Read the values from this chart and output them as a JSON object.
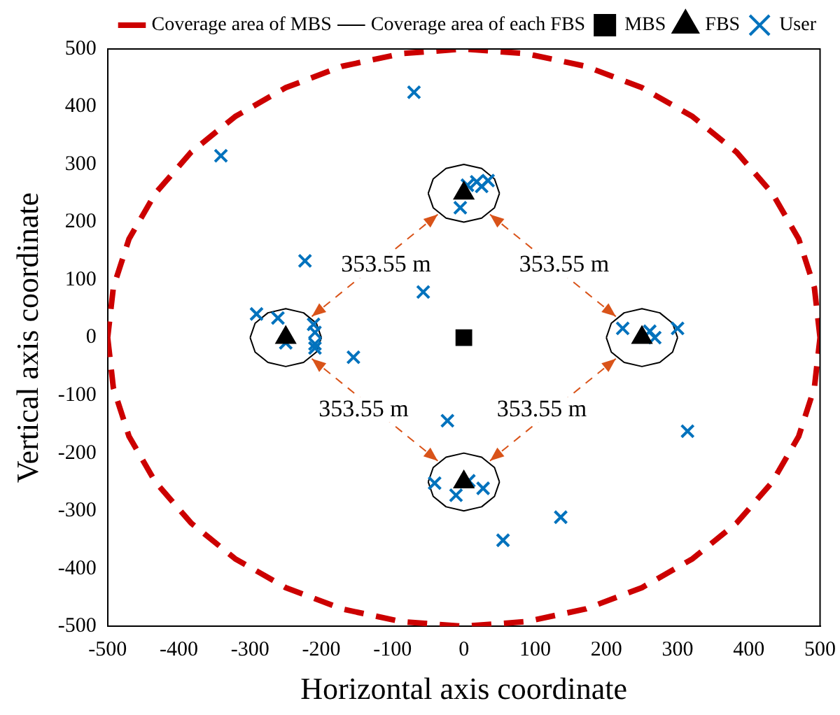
{
  "chart_data": {
    "type": "scatter",
    "xlabel": "Horizontal axis coordinate",
    "ylabel": "Vertical axis coordinate",
    "xlim": [
      -500,
      500
    ],
    "xticks": [
      -500,
      -400,
      -300,
      -200,
      -100,
      0,
      100,
      200,
      300,
      400,
      500
    ],
    "ylim": [
      -500,
      500
    ],
    "yticks": [
      -500,
      -400,
      -300,
      -200,
      -100,
      0,
      100,
      200,
      300,
      400,
      500
    ],
    "grid": false,
    "legend": "top right",
    "series": [
      {
        "name": "Coverage area of MBS",
        "type": "line",
        "line_style": "dashed",
        "marker": "none",
        "color": "#cc0000",
        "x": [
          500,
          492,
          470,
          433,
          383,
          321,
          250,
          171,
          87,
          0,
          -87,
          -171,
          -250,
          -321,
          -383,
          -433,
          -470,
          -492,
          -500,
          null,
          -500,
          -492,
          -470,
          -433,
          -383,
          -321,
          -250,
          -171,
          -87,
          0,
          87,
          171,
          250,
          321,
          383,
          433,
          470,
          492,
          500
        ],
        "values": [
          0,
          87,
          171,
          250,
          321,
          383,
          433,
          470,
          492,
          500,
          492,
          470,
          433,
          383,
          321,
          250,
          171,
          87,
          0,
          null,
          0,
          -87,
          -171,
          -250,
          -321,
          -383,
          -433,
          -470,
          -492,
          -500,
          -492,
          -470,
          -433,
          -383,
          -321,
          -250,
          -171,
          -87,
          0
        ]
      },
      {
        "name": "Coverage area of each FBS",
        "type": "line",
        "line_style": "solid",
        "marker": "none",
        "color": "#000000",
        "x": [
          300,
          293,
          275,
          250,
          225,
          207,
          200,
          null,
          200,
          207,
          225,
          250,
          275,
          293,
          300,
          null,
          50,
          43,
          25,
          0,
          -25,
          -43,
          -50,
          null,
          -50,
          -43,
          -25,
          0,
          25,
          43,
          50,
          null,
          -200,
          -207,
          -225,
          -250,
          -275,
          -293,
          -300,
          null,
          -300,
          -293,
          -275,
          -250,
          -225,
          -207,
          -200,
          null,
          50,
          43,
          25,
          0,
          -25,
          -43,
          -50,
          null,
          -50,
          -43,
          -25,
          0,
          25,
          43,
          50
        ],
        "values": [
          0,
          25,
          43,
          50,
          43,
          25,
          0,
          null,
          0,
          -25,
          -43,
          -50,
          -43,
          -25,
          0,
          null,
          250,
          275,
          293,
          300,
          293,
          275,
          250,
          null,
          250,
          225,
          207,
          200,
          207,
          225,
          250,
          null,
          0,
          25,
          43,
          50,
          43,
          25,
          0,
          null,
          0,
          -25,
          -43,
          -50,
          -43,
          -25,
          0,
          null,
          -250,
          -225,
          -207,
          -200,
          -207,
          -225,
          -250,
          null,
          -250,
          -275,
          -293,
          -300,
          -293,
          -275,
          -250
        ]
      },
      {
        "name": "MBS",
        "type": "scatter",
        "marker": "square",
        "color": "#000000",
        "x": [
          0
        ],
        "values": [
          0
        ]
      },
      {
        "name": "FBS",
        "type": "scatter",
        "marker": "triangle",
        "color": "#000000",
        "x": [
          250,
          0,
          -250,
          0
        ],
        "values": [
          0,
          250,
          0,
          -250
        ]
      },
      {
        "name": "User",
        "type": "scatter",
        "marker": "cross",
        "color": "#0072bd",
        "x": [
          -70,
          -341,
          5,
          18,
          25,
          34,
          -5,
          -223,
          -57,
          -291,
          -261,
          -250,
          -211,
          -209,
          -209,
          -209,
          -155,
          223,
          261,
          268,
          300,
          -23,
          -41,
          -11,
          7,
          27,
          136,
          55,
          314
        ],
        "values": [
          425,
          315,
          264,
          270,
          262,
          272,
          225,
          133,
          79,
          41,
          34,
          -9,
          23,
          9,
          -11,
          -18,
          -34,
          16,
          11,
          0,
          16,
          -144,
          -252,
          -273,
          -248,
          -261,
          -311,
          -351,
          -162
        ]
      }
    ],
    "annotations": [
      "353.55 m",
      "353.55 m",
      "353.55 m",
      "353.55 m"
    ]
  }
}
